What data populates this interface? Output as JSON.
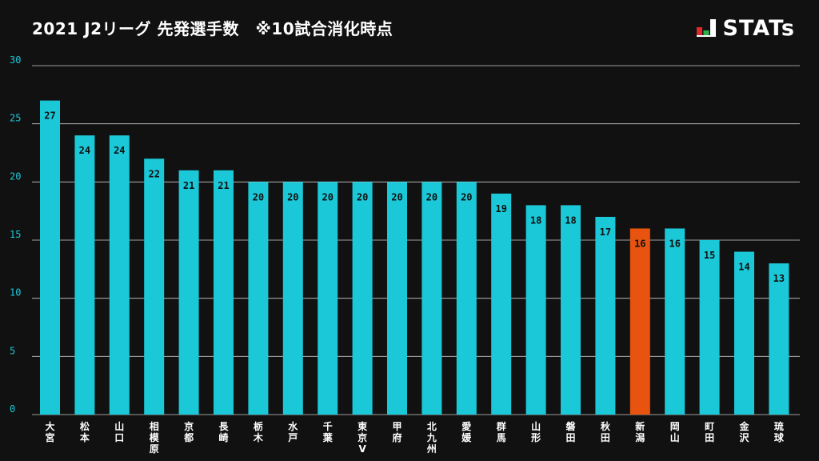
{
  "header": {
    "title": "2021 J2リーグ 先発選手数　※10試合消化時点",
    "brand": "STATs"
  },
  "colors": {
    "background": "#111111",
    "bar": "#1ac8d8",
    "highlight": "#e8540f",
    "grid": "#cccccc",
    "tick_text": "#1ac8d8"
  },
  "chart_data": {
    "type": "bar",
    "categories": [
      "大宮",
      "松本",
      "山口",
      "相模原",
      "京都",
      "長崎",
      "栃木",
      "水戸",
      "千葉",
      "東京V",
      "甲府",
      "北九州",
      "愛媛",
      "群馬",
      "山形",
      "磐田",
      "秋田",
      "新潟",
      "岡山",
      "町田",
      "金沢",
      "琉球"
    ],
    "values": [
      27,
      24,
      24,
      22,
      21,
      21,
      20,
      20,
      20,
      20,
      20,
      20,
      20,
      19,
      18,
      18,
      17,
      16,
      16,
      15,
      14,
      13
    ],
    "highlight_category": "新潟",
    "yticks": [
      0,
      5,
      10,
      15,
      20,
      25,
      30
    ],
    "ylim": [
      0,
      30
    ],
    "grid": true,
    "title": "2021 J2リーグ 先発選手数　※10試合消化時点",
    "xlabel": "",
    "ylabel": ""
  }
}
